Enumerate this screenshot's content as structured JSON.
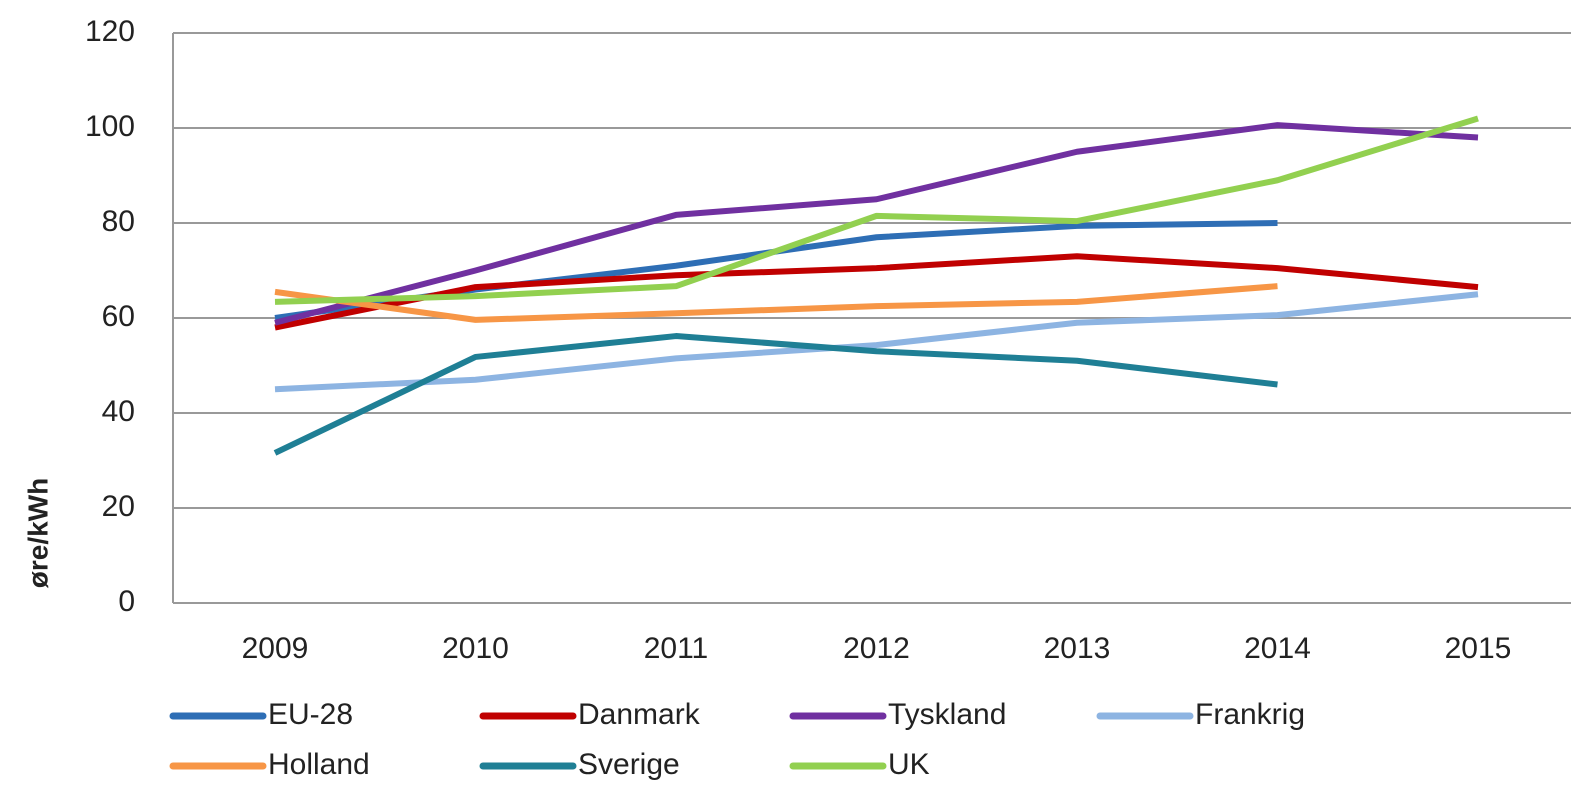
{
  "chart_data": {
    "type": "line",
    "y_label": "øre/kWh",
    "categories": [
      "2009",
      "2010",
      "2011",
      "2012",
      "2013",
      "2014",
      "2015"
    ],
    "series": [
      {
        "name": "EU-28",
        "color": "#2e6eb5",
        "values": [
          60,
          66,
          71,
          77,
          79.4,
          80,
          null
        ]
      },
      {
        "name": "Danmark",
        "color": "#c00000",
        "values": [
          58,
          66.5,
          69,
          70.5,
          73,
          70.5,
          66.5
        ]
      },
      {
        "name": "Tyskland",
        "color": "#7030a0",
        "values": [
          59,
          70,
          81.7,
          85,
          95,
          100.6,
          98
        ]
      },
      {
        "name": "Frankrig",
        "color": "#8db4e2",
        "values": [
          45,
          47,
          51.5,
          54.3,
          59,
          60.6,
          65
        ]
      },
      {
        "name": "Holland",
        "color": "#f79646",
        "values": [
          65.5,
          59.6,
          61,
          62.5,
          63.4,
          66.7,
          null
        ]
      },
      {
        "name": "Sverige",
        "color": "#1f7f95",
        "values": [
          31.6,
          51.8,
          56.2,
          53,
          51,
          46,
          null
        ]
      },
      {
        "name": "UK",
        "color": "#92d050",
        "values": [
          63.4,
          64.6,
          66.7,
          81.5,
          80.4,
          89,
          102
        ]
      }
    ],
    "ylim": [
      0,
      120
    ],
    "yticks": [
      0,
      20,
      40,
      60,
      80,
      100,
      120
    ],
    "grid": true
  }
}
